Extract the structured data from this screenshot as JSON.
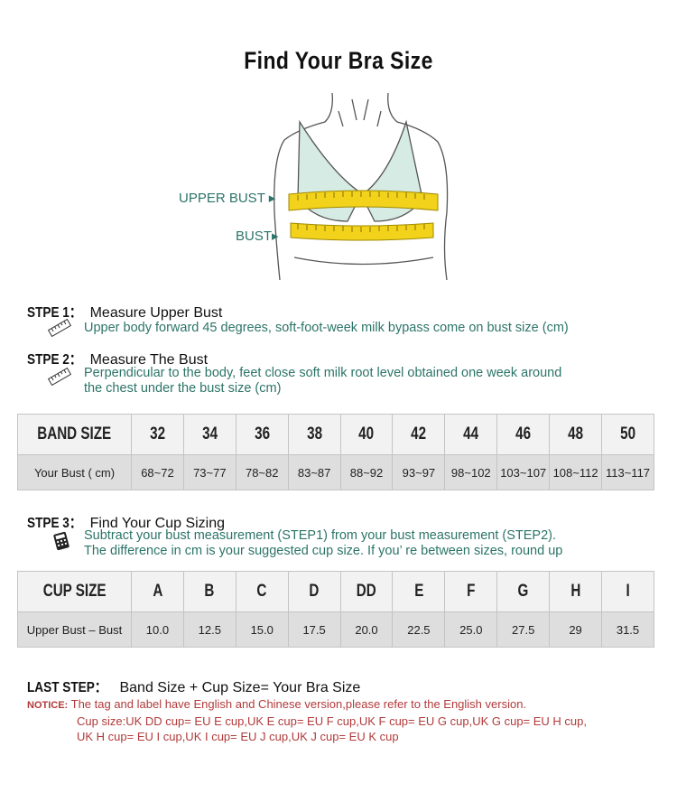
{
  "title": "Find Your Bra Size",
  "illustration": {
    "upper_bust_label": "UPPER BUST",
    "bust_label": "BUST"
  },
  "step1": {
    "label": "STPE 1：",
    "title": "Measure Upper Bust",
    "desc": "Upper body forward 45 degrees, soft-foot-week milk bypass come on bust size (cm)",
    "icon": "ruler-icon"
  },
  "step2": {
    "label": "STPE 2：",
    "title": "Measure The Bust",
    "desc1": "Perpendicular to the body, feet close soft milk root level obtained one week around",
    "desc2": "the chest under the bust size (cm)",
    "icon": "ruler-icon"
  },
  "band_table": {
    "header": "BAND SIZE",
    "row_label": "Your Bust ( cm)",
    "sizes": [
      "32",
      "34",
      "36",
      "38",
      "40",
      "42",
      "44",
      "46",
      "48",
      "50"
    ],
    "values": [
      "68~72",
      "73~77",
      "78~82",
      "83~87",
      "88~92",
      "93~97",
      "98~102",
      "103~107",
      "108~112",
      "113~117"
    ]
  },
  "step3": {
    "label": "STPE 3：",
    "title": "Find Your Cup Sizing",
    "desc1": "Subtract your bust measurement (STEP1) from your bust measurement (STEP2).",
    "desc2": "The difference in cm is your suggested cup size. If you’ re between sizes, round up",
    "icon": "calculator-icon"
  },
  "cup_table": {
    "header": "CUP SIZE",
    "row_label": "Upper Bust – Bust",
    "sizes": [
      "A",
      "B",
      "C",
      "D",
      "DD",
      "E",
      "F",
      "G",
      "H",
      "I"
    ],
    "values": [
      "10.0",
      "12.5",
      "15.0",
      "17.5",
      "20.0",
      "22.5",
      "25.0",
      "27.5",
      "29",
      "31.5"
    ]
  },
  "last_step": {
    "label": "LAST STEP：",
    "text": "Band Size + Cup Size= Your Bra Size"
  },
  "notice": {
    "label": "NOTICE:",
    "line1": "The tag and label have English and Chinese version,please refer to the English version.",
    "line2": "Cup size:UK DD cup= EU E cup,UK E cup= EU F cup,UK F cup= EU G cup,UK G cup= EU H cup,",
    "line3": "UK H cup= EU I cup,UK I cup= EU J cup,UK J cup= EU K cup"
  },
  "colors": {
    "teal": "#2c7468",
    "notice_red": "#b23a3a",
    "tape_yellow": "#f2d21a",
    "bra_fill": "#d6ebe4"
  }
}
